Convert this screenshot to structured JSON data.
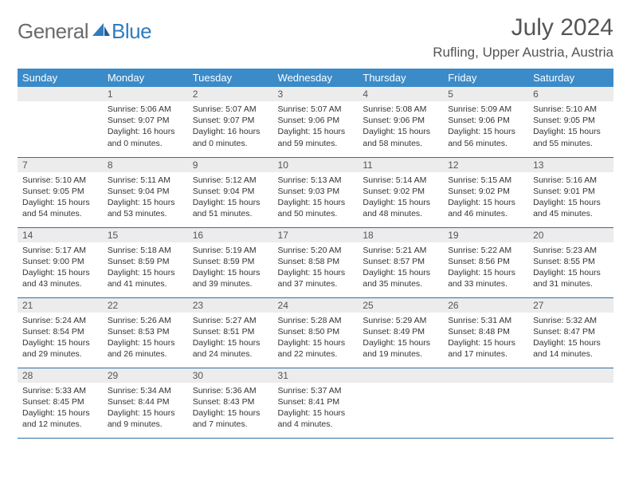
{
  "logo": {
    "text1": "General",
    "text2": "Blue"
  },
  "title": "July 2024",
  "location": "Rufling, Upper Austria, Austria",
  "colors": {
    "header_bg": "#3b8bc9",
    "header_text": "#ffffff",
    "daynum_bg": "#ececec",
    "border": "#2f6ea8",
    "logo_gray": "#6b6b6b",
    "logo_blue": "#2f7dc0"
  },
  "day_headers": [
    "Sunday",
    "Monday",
    "Tuesday",
    "Wednesday",
    "Thursday",
    "Friday",
    "Saturday"
  ],
  "weeks": [
    [
      {
        "n": "",
        "sr": "",
        "ss": "",
        "dl": ""
      },
      {
        "n": "1",
        "sr": "5:06 AM",
        "ss": "9:07 PM",
        "dl": "16 hours and 0 minutes."
      },
      {
        "n": "2",
        "sr": "5:07 AM",
        "ss": "9:07 PM",
        "dl": "16 hours and 0 minutes."
      },
      {
        "n": "3",
        "sr": "5:07 AM",
        "ss": "9:06 PM",
        "dl": "15 hours and 59 minutes."
      },
      {
        "n": "4",
        "sr": "5:08 AM",
        "ss": "9:06 PM",
        "dl": "15 hours and 58 minutes."
      },
      {
        "n": "5",
        "sr": "5:09 AM",
        "ss": "9:06 PM",
        "dl": "15 hours and 56 minutes."
      },
      {
        "n": "6",
        "sr": "5:10 AM",
        "ss": "9:05 PM",
        "dl": "15 hours and 55 minutes."
      }
    ],
    [
      {
        "n": "7",
        "sr": "5:10 AM",
        "ss": "9:05 PM",
        "dl": "15 hours and 54 minutes."
      },
      {
        "n": "8",
        "sr": "5:11 AM",
        "ss": "9:04 PM",
        "dl": "15 hours and 53 minutes."
      },
      {
        "n": "9",
        "sr": "5:12 AM",
        "ss": "9:04 PM",
        "dl": "15 hours and 51 minutes."
      },
      {
        "n": "10",
        "sr": "5:13 AM",
        "ss": "9:03 PM",
        "dl": "15 hours and 50 minutes."
      },
      {
        "n": "11",
        "sr": "5:14 AM",
        "ss": "9:02 PM",
        "dl": "15 hours and 48 minutes."
      },
      {
        "n": "12",
        "sr": "5:15 AM",
        "ss": "9:02 PM",
        "dl": "15 hours and 46 minutes."
      },
      {
        "n": "13",
        "sr": "5:16 AM",
        "ss": "9:01 PM",
        "dl": "15 hours and 45 minutes."
      }
    ],
    [
      {
        "n": "14",
        "sr": "5:17 AM",
        "ss": "9:00 PM",
        "dl": "15 hours and 43 minutes."
      },
      {
        "n": "15",
        "sr": "5:18 AM",
        "ss": "8:59 PM",
        "dl": "15 hours and 41 minutes."
      },
      {
        "n": "16",
        "sr": "5:19 AM",
        "ss": "8:59 PM",
        "dl": "15 hours and 39 minutes."
      },
      {
        "n": "17",
        "sr": "5:20 AM",
        "ss": "8:58 PM",
        "dl": "15 hours and 37 minutes."
      },
      {
        "n": "18",
        "sr": "5:21 AM",
        "ss": "8:57 PM",
        "dl": "15 hours and 35 minutes."
      },
      {
        "n": "19",
        "sr": "5:22 AM",
        "ss": "8:56 PM",
        "dl": "15 hours and 33 minutes."
      },
      {
        "n": "20",
        "sr": "5:23 AM",
        "ss": "8:55 PM",
        "dl": "15 hours and 31 minutes."
      }
    ],
    [
      {
        "n": "21",
        "sr": "5:24 AM",
        "ss": "8:54 PM",
        "dl": "15 hours and 29 minutes."
      },
      {
        "n": "22",
        "sr": "5:26 AM",
        "ss": "8:53 PM",
        "dl": "15 hours and 26 minutes."
      },
      {
        "n": "23",
        "sr": "5:27 AM",
        "ss": "8:51 PM",
        "dl": "15 hours and 24 minutes."
      },
      {
        "n": "24",
        "sr": "5:28 AM",
        "ss": "8:50 PM",
        "dl": "15 hours and 22 minutes."
      },
      {
        "n": "25",
        "sr": "5:29 AM",
        "ss": "8:49 PM",
        "dl": "15 hours and 19 minutes."
      },
      {
        "n": "26",
        "sr": "5:31 AM",
        "ss": "8:48 PM",
        "dl": "15 hours and 17 minutes."
      },
      {
        "n": "27",
        "sr": "5:32 AM",
        "ss": "8:47 PM",
        "dl": "15 hours and 14 minutes."
      }
    ],
    [
      {
        "n": "28",
        "sr": "5:33 AM",
        "ss": "8:45 PM",
        "dl": "15 hours and 12 minutes."
      },
      {
        "n": "29",
        "sr": "5:34 AM",
        "ss": "8:44 PM",
        "dl": "15 hours and 9 minutes."
      },
      {
        "n": "30",
        "sr": "5:36 AM",
        "ss": "8:43 PM",
        "dl": "15 hours and 7 minutes."
      },
      {
        "n": "31",
        "sr": "5:37 AM",
        "ss": "8:41 PM",
        "dl": "15 hours and 4 minutes."
      },
      {
        "n": "",
        "sr": "",
        "ss": "",
        "dl": ""
      },
      {
        "n": "",
        "sr": "",
        "ss": "",
        "dl": ""
      },
      {
        "n": "",
        "sr": "",
        "ss": "",
        "dl": ""
      }
    ]
  ],
  "labels": {
    "sunrise": "Sunrise:",
    "sunset": "Sunset:",
    "daylight": "Daylight:"
  }
}
